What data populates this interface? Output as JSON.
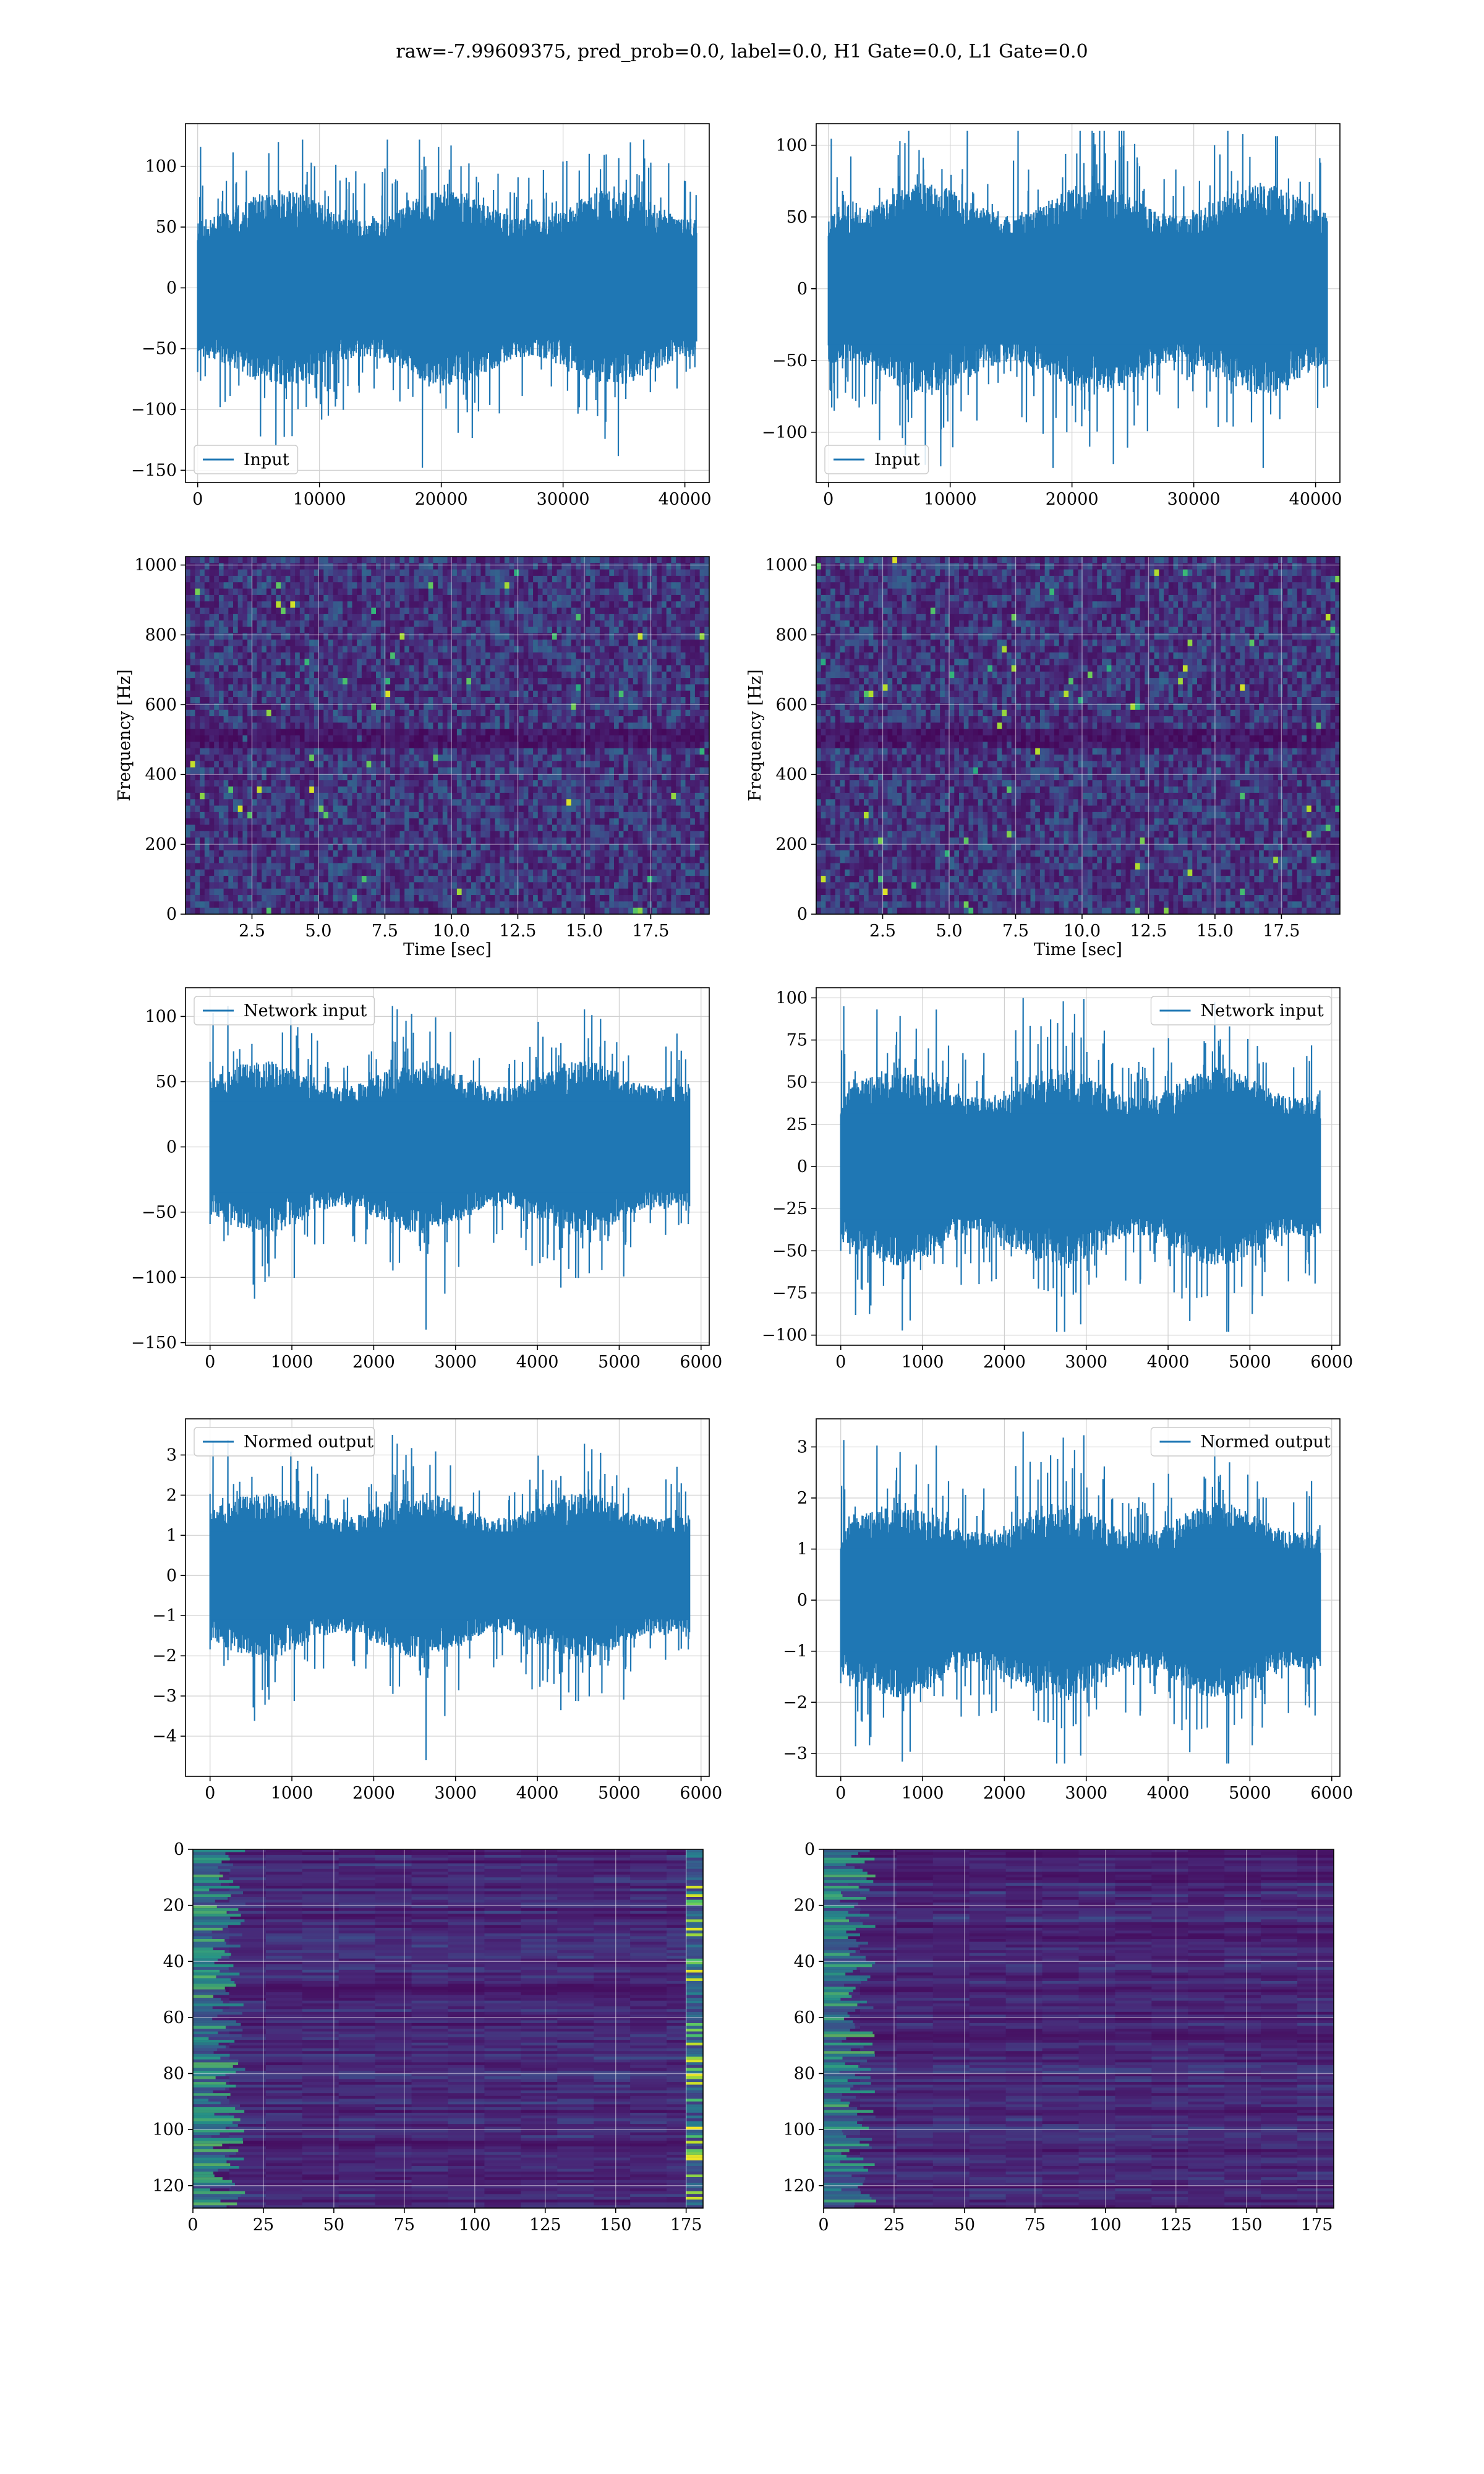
{
  "title": "raw=-7.99609375, pred_prob=0.0, label=0.0, H1 Gate=0.0, L1 Gate=0.0",
  "colors": {
    "line": "#1f77b4",
    "grid": "#d0d0d0",
    "viridis_dark": "#440154",
    "viridis_bright": "#fde725"
  },
  "chart_data": [
    {
      "id": "h1-input",
      "type": "line",
      "legend": "Input",
      "legend_loc": "lower left",
      "xlim": [
        -1000,
        42000
      ],
      "ylim": [
        -160,
        135
      ],
      "xticks": [
        0,
        10000,
        20000,
        30000,
        40000
      ],
      "yticks": [
        -150,
        -100,
        -50,
        0,
        50,
        100
      ],
      "signal": {
        "x_range": [
          0,
          40960
        ],
        "n": 1200,
        "band": 55,
        "spike_max": 122,
        "spike_min": -148,
        "seed": 11
      },
      "grid": true
    },
    {
      "id": "l1-input",
      "type": "line",
      "legend": "Input",
      "legend_loc": "lower left",
      "xlim": [
        -1000,
        42000
      ],
      "ylim": [
        -135,
        115
      ],
      "xticks": [
        0,
        10000,
        20000,
        30000,
        40000
      ],
      "yticks": [
        -100,
        -50,
        0,
        50,
        100
      ],
      "signal": {
        "x_range": [
          0,
          40960
        ],
        "n": 1200,
        "band": 50,
        "spike_max": 110,
        "spike_min": -125,
        "seed": 23
      },
      "grid": true
    },
    {
      "id": "h1-spectrogram",
      "type": "heatmap",
      "xlabel": "Time [sec]",
      "ylabel": "Frequency [Hz]",
      "xlim": [
        0,
        19.7
      ],
      "ylim": [
        0,
        1024
      ],
      "xticks": [
        2.5,
        5.0,
        7.5,
        10.0,
        12.5,
        15.0,
        17.5
      ],
      "xtick_labels": [
        "2.5",
        "5.0",
        "7.5",
        "10.0",
        "12.5",
        "15.0",
        "17.5"
      ],
      "yticks": [
        0,
        200,
        400,
        600,
        800,
        1000
      ],
      "dark_band_hz": 500,
      "seed": 5,
      "grid": true
    },
    {
      "id": "l1-spectrogram",
      "type": "heatmap",
      "xlabel": "Time [sec]",
      "ylabel": "Frequency [Hz]",
      "xlim": [
        0,
        19.7
      ],
      "ylim": [
        0,
        1024
      ],
      "xticks": [
        2.5,
        5.0,
        7.5,
        10.0,
        12.5,
        15.0,
        17.5
      ],
      "xtick_labels": [
        "2.5",
        "5.0",
        "7.5",
        "10.0",
        "12.5",
        "15.0",
        "17.5"
      ],
      "yticks": [
        0,
        200,
        400,
        600,
        800,
        1000
      ],
      "dark_band_hz": 500,
      "seed": 9,
      "grid": true
    },
    {
      "id": "h1-network-input",
      "type": "line",
      "legend": "Network input",
      "legend_loc": "upper left",
      "xlim": [
        -300,
        6100
      ],
      "ylim": [
        -152,
        122
      ],
      "xticks": [
        0,
        1000,
        2000,
        3000,
        4000,
        5000,
        6000
      ],
      "yticks": [
        -150,
        -100,
        -50,
        0,
        50,
        100
      ],
      "signal": {
        "x_range": [
          0,
          5860
        ],
        "n": 1100,
        "band": 45,
        "spike_max": 108,
        "spike_min": -140,
        "seed": 31
      },
      "grid": true
    },
    {
      "id": "l1-network-input",
      "type": "line",
      "legend": "Network input",
      "legend_loc": "upper right",
      "xlim": [
        -300,
        6100
      ],
      "ylim": [
        -106,
        106
      ],
      "xticks": [
        0,
        1000,
        2000,
        3000,
        4000,
        5000,
        6000
      ],
      "yticks": [
        -100,
        -75,
        -50,
        -25,
        0,
        25,
        50,
        75,
        100
      ],
      "signal": {
        "x_range": [
          0,
          5860
        ],
        "n": 1100,
        "band": 40,
        "spike_max": 100,
        "spike_min": -98,
        "seed": 37
      },
      "grid": true
    },
    {
      "id": "h1-normed-output",
      "type": "line",
      "legend": "Normed output",
      "legend_loc": "upper left",
      "xlim": [
        -300,
        6100
      ],
      "ylim": [
        -5.0,
        3.9
      ],
      "xticks": [
        0,
        1000,
        2000,
        3000,
        4000,
        5000,
        6000
      ],
      "yticks": [
        -4,
        -3,
        -2,
        -1,
        0,
        1,
        2,
        3
      ],
      "signal": {
        "x_range": [
          0,
          5860
        ],
        "n": 1100,
        "band": 1.4,
        "spike_max": 3.5,
        "spike_min": -4.6,
        "seed": 31
      },
      "grid": true
    },
    {
      "id": "l1-normed-output",
      "type": "line",
      "legend": "Normed output",
      "legend_loc": "upper right",
      "xlim": [
        -300,
        6100
      ],
      "ylim": [
        -3.45,
        3.55
      ],
      "xticks": [
        0,
        1000,
        2000,
        3000,
        4000,
        5000,
        6000
      ],
      "yticks": [
        -3,
        -2,
        -1,
        0,
        1,
        2,
        3
      ],
      "signal": {
        "x_range": [
          0,
          5860
        ],
        "n": 1100,
        "band": 1.3,
        "spike_max": 3.3,
        "spike_min": -3.2,
        "seed": 37
      },
      "grid": true
    },
    {
      "id": "h1-feature-map",
      "type": "heatmap",
      "inverted_y": true,
      "xlim": [
        0,
        181
      ],
      "ylim": [
        0,
        128
      ],
      "xticks": [
        0,
        25,
        50,
        75,
        100,
        125,
        150,
        175
      ],
      "yticks": [
        0,
        20,
        40,
        60,
        80,
        100,
        120
      ],
      "seed": 41,
      "bright_edge": "both",
      "grid": true
    },
    {
      "id": "l1-feature-map",
      "type": "heatmap",
      "inverted_y": true,
      "xlim": [
        0,
        181
      ],
      "ylim": [
        0,
        128
      ],
      "xticks": [
        0,
        25,
        50,
        75,
        100,
        125,
        150,
        175
      ],
      "yticks": [
        0,
        20,
        40,
        60,
        80,
        100,
        120
      ],
      "seed": 53,
      "bright_edge": "left",
      "grid": true
    }
  ]
}
